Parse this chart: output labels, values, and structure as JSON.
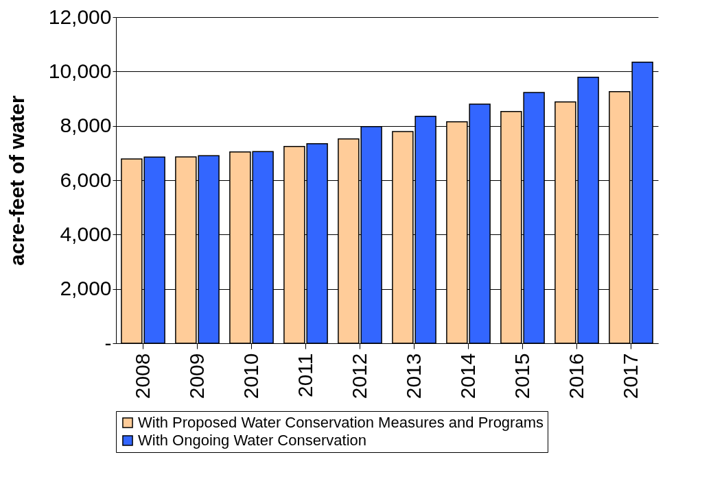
{
  "chart_data": {
    "type": "bar",
    "ylabel": "acre-feet of water",
    "categories": [
      "2008",
      "2009",
      "2010",
      "2011",
      "2012",
      "2013",
      "2014",
      "2015",
      "2016",
      "2017"
    ],
    "series": [
      {
        "name": "With Proposed Water Conservation Measures and Programs",
        "color": "#ffcc99",
        "values": [
          6780,
          6860,
          7040,
          7240,
          7520,
          7790,
          8150,
          8530,
          8880,
          9260
        ]
      },
      {
        "name": "With Ongoing Water Conservation",
        "color": "#3366ff",
        "values": [
          6850,
          6900,
          7050,
          7340,
          7970,
          8350,
          8800,
          9230,
          9790,
          10340
        ]
      }
    ],
    "ylim": [
      0,
      12000
    ],
    "yticks": [
      {
        "value": 0,
        "label": "-"
      },
      {
        "value": 2000,
        "label": "2,000"
      },
      {
        "value": 4000,
        "label": "4,000"
      },
      {
        "value": 6000,
        "label": "6,000"
      },
      {
        "value": 8000,
        "label": "8,000"
      },
      {
        "value": 10000,
        "label": "10,000"
      },
      {
        "value": 12000,
        "label": "12,000"
      }
    ],
    "grid": "y",
    "legend": "bottom"
  }
}
